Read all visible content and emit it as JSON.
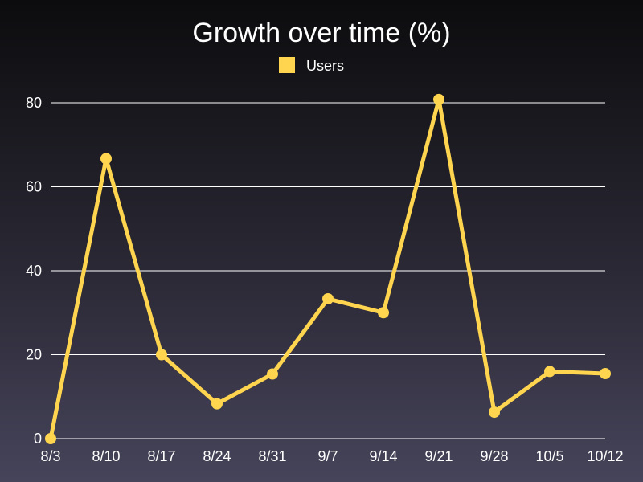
{
  "chart_data": {
    "type": "line",
    "title": "Growth over time (%)",
    "categories": [
      "8/3",
      "8/10",
      "8/17",
      "8/24",
      "8/31",
      "9/7",
      "9/14",
      "9/21",
      "9/28",
      "10/5",
      "10/12"
    ],
    "series": [
      {
        "name": "Users",
        "color": "#ffd54f",
        "values": [
          0,
          66.7,
          20,
          8.3,
          15.4,
          33.3,
          30,
          80.8,
          6.3,
          16,
          15.5
        ]
      }
    ],
    "ylim": [
      0,
      80
    ],
    "yticks": [
      "0",
      "20",
      "40",
      "60",
      "80"
    ],
    "legend_position": "top-center",
    "grid": true
  }
}
